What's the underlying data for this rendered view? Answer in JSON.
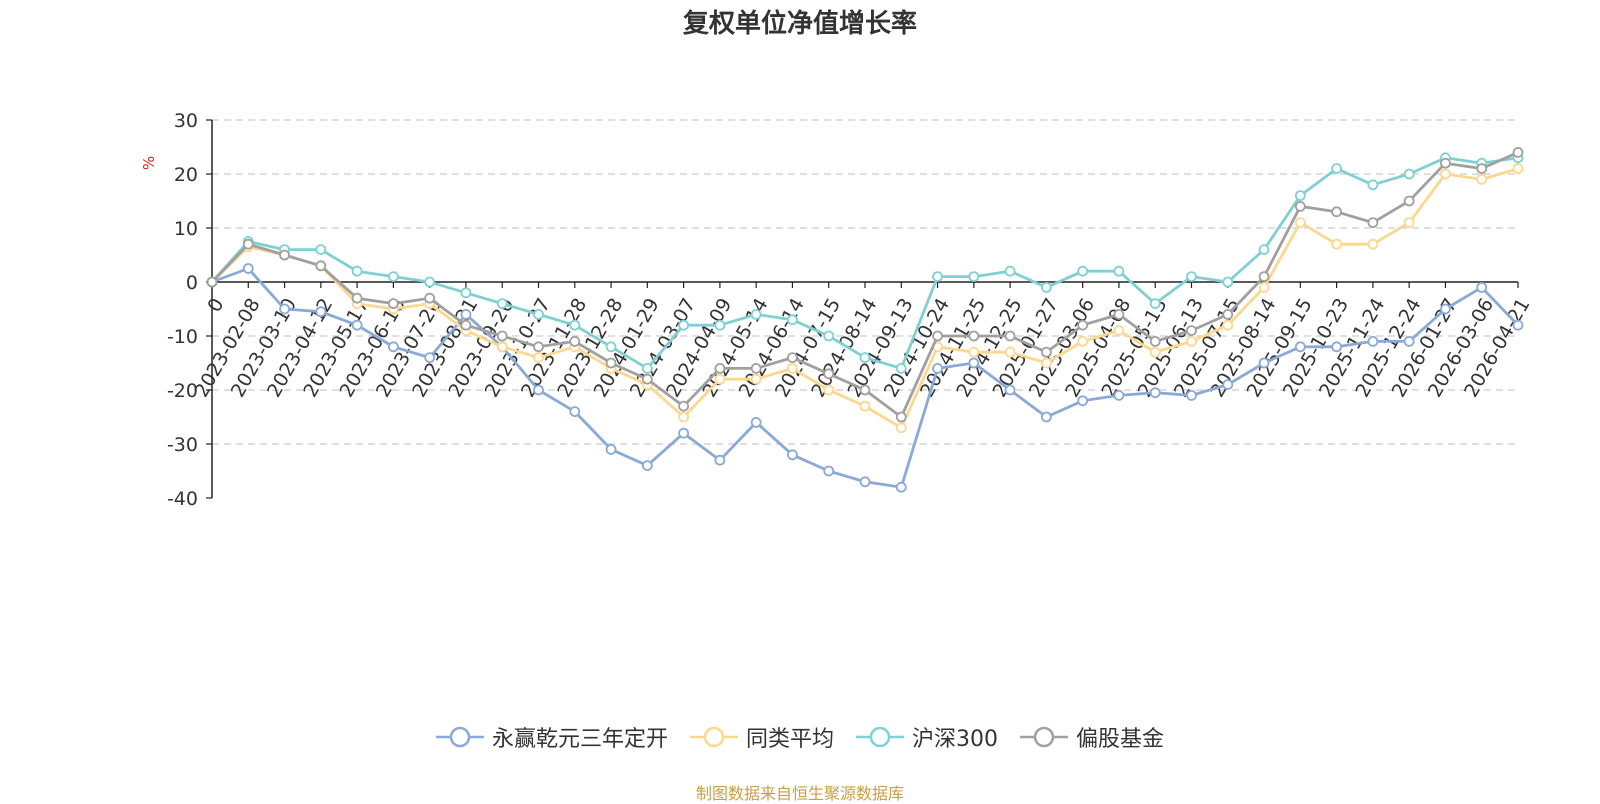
{
  "chart_data": {
    "type": "line",
    "title": "复权单位净值增长率",
    "ylabel": "%",
    "xlabel": "",
    "ylim": [
      -40,
      30
    ],
    "yticks": [
      30,
      20,
      10,
      0,
      -10,
      -20,
      -30,
      -40
    ],
    "x_tick_labels": [
      "0",
      "2023-02-08",
      "2023-03-10",
      "2023-04-12",
      "2023-05-17",
      "2023-06-16",
      "2023-07-20",
      "2023-08-21",
      "2023-09-20",
      "2023-10-27",
      "2023-11-28",
      "2023-12-28",
      "2024-01-29",
      "2024-03-07",
      "2024-04-09",
      "2024-05-14",
      "2024-06-14",
      "2024-07-15",
      "2024-08-14",
      "2024-09-13",
      "2024-10-24",
      "2024-11-25",
      "2024-12-25",
      "2025-01-27",
      "2025-03-06",
      "2025-04-08",
      "2025-05-13",
      "2025-06-13",
      "2025-07-15",
      "2025-08-14",
      "2025-09-15",
      "2025-10-23",
      "2025-11-24",
      "2025-12-24",
      "2026-01-27",
      "2026-03-06",
      "2026-04-21"
    ],
    "series": [
      {
        "name": "永赢乾元三年定开",
        "color": "#8aa8d8",
        "values": [
          0,
          2.5,
          -5,
          -5.5,
          -8,
          -12,
          -14,
          -6,
          -12,
          -20,
          -24,
          -31,
          -34,
          -28,
          -33,
          -26,
          -32,
          -35,
          -37,
          -38,
          -16,
          -15,
          -20,
          -25,
          -22,
          -21,
          -20.5,
          -21,
          -19,
          -15,
          -12,
          -12,
          -11,
          -11,
          -5,
          -1,
          -8
        ]
      },
      {
        "name": "同类平均",
        "color": "#fdd78e",
        "values": [
          0,
          6.5,
          5,
          3,
          -4,
          -5,
          -4,
          -9,
          -12,
          -14,
          -12,
          -16,
          -19,
          -25,
          -18,
          -18,
          -16,
          -20,
          -23,
          -27,
          -12,
          -13,
          -13,
          -15,
          -11,
          -9,
          -13,
          -11,
          -8,
          -1,
          11,
          7,
          7,
          11,
          20,
          19,
          21
        ]
      },
      {
        "name": "沪深300",
        "color": "#7fd0d2",
        "values": [
          0,
          7.5,
          6,
          6,
          2,
          1,
          0,
          -2,
          -4,
          -6,
          -8,
          -12,
          -16,
          -8,
          -8,
          -6,
          -7,
          -10,
          -14,
          -16,
          1,
          1,
          2,
          -1,
          2,
          2,
          -4,
          1,
          0,
          6,
          16,
          21,
          18,
          20,
          23,
          22,
          23
        ]
      },
      {
        "name": "偏股基金",
        "color": "#a0a0a0",
        "values": [
          0,
          7,
          5,
          3,
          -3,
          -4,
          -3,
          -8,
          -10,
          -12,
          -11,
          -15,
          -18,
          -23,
          -16,
          -16,
          -14,
          -17,
          -20,
          -25,
          -10,
          -10,
          -10,
          -13,
          -8,
          -6,
          -11,
          -9,
          -6,
          1,
          14,
          13,
          11,
          15,
          22,
          21,
          24
        ]
      }
    ],
    "legend_position": "bottom",
    "grid": true
  },
  "source_note": "制图数据来自恒生聚源数据库"
}
